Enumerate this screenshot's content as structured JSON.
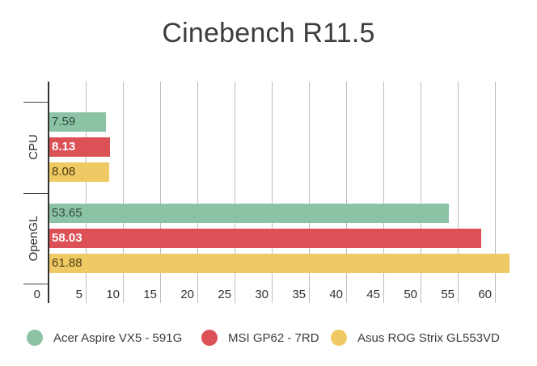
{
  "chart_data": {
    "type": "bar",
    "orientation": "horizontal",
    "title": "Cinebench R11.5",
    "xlabel": "",
    "ylabel": "",
    "categories": [
      "CPU",
      "OpenGL"
    ],
    "series": [
      {
        "name": "Acer Aspire VX5 - 591G",
        "color": "#8cc3a5",
        "label_color": "#2f4a3a",
        "values": [
          7.59,
          53.65
        ],
        "labels": [
          "7.59",
          "53.65"
        ]
      },
      {
        "name": "MSI GP62 - 7RD",
        "color": "#dc5156",
        "label_color": "#ffffff",
        "values": [
          8.13,
          58.03
        ],
        "labels": [
          "8.13",
          "58.03"
        ]
      },
      {
        "name": "Asus ROG Strix GL553VD",
        "color": "#efc964",
        "label_color": "#4a3c10",
        "values": [
          8.08,
          61.88
        ],
        "labels": [
          "8.08",
          "61.88"
        ]
      }
    ],
    "x_ticks": [
      "0",
      "5",
      "10",
      "15",
      "20",
      "25",
      "30",
      "35",
      "40",
      "45",
      "50",
      "55",
      "60"
    ],
    "xlim": [
      0,
      65
    ],
    "grid": true,
    "legend_position": "bottom"
  }
}
